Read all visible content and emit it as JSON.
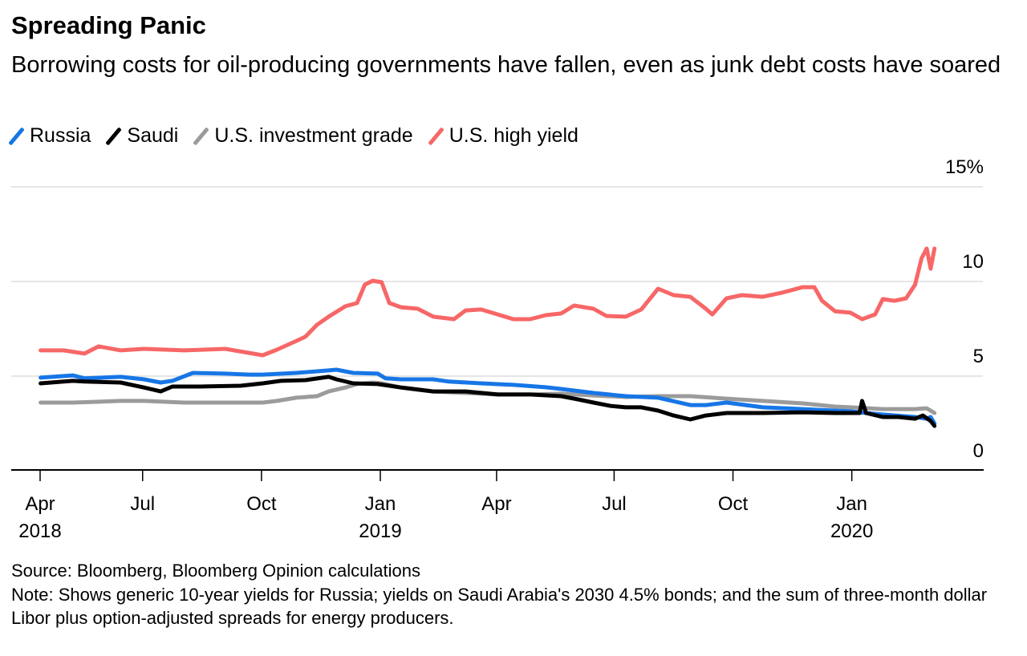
{
  "title": "Spreading Panic",
  "subtitle": "Borrowing costs for oil-producing governments have fallen, even as junk debt costs have soared",
  "source": "Source: Bloomberg, Bloomberg Opinion calculations",
  "note": "Note: Shows generic 10-year yields for Russia; yields on Saudi Arabia's 2030 4.5% bonds; and the sum of three-month dollar Libor plus option-adjusted spreads for energy producers.",
  "chart_data": {
    "type": "line",
    "title": "Spreading Panic",
    "xlabel": "",
    "ylabel": "",
    "ylim": [
      0,
      15
    ],
    "yticks": [
      {
        "value": 0,
        "label": "0"
      },
      {
        "value": 5,
        "label": "5"
      },
      {
        "value": 10,
        "label": "10"
      },
      {
        "value": 15,
        "label": "15%"
      }
    ],
    "xticks": [
      {
        "date": "2018-04-01",
        "label": "Apr",
        "year": "2018"
      },
      {
        "date": "2018-07-01",
        "label": "Jul",
        "year": ""
      },
      {
        "date": "2018-10-01",
        "label": "Oct",
        "year": ""
      },
      {
        "date": "2019-01-01",
        "label": "Jan",
        "year": "2019"
      },
      {
        "date": "2019-04-01",
        "label": "Apr",
        "year": ""
      },
      {
        "date": "2019-07-01",
        "label": "Jul",
        "year": ""
      },
      {
        "date": "2019-10-01",
        "label": "Oct",
        "year": ""
      },
      {
        "date": "2020-01-01",
        "label": "Jan",
        "year": "2020"
      }
    ],
    "grid": true,
    "legend_position": "top-left",
    "series": [
      {
        "name": "Russia",
        "color": "#1776e6",
        "points": [
          [
            "2018-04-13",
            4.92
          ],
          [
            "2018-05-08",
            5.04
          ],
          [
            "2018-05-17",
            4.88
          ],
          [
            "2018-06-14",
            4.96
          ],
          [
            "2018-07-02",
            4.83
          ],
          [
            "2018-07-15",
            4.66
          ],
          [
            "2018-07-24",
            4.75
          ],
          [
            "2018-08-09",
            5.17
          ],
          [
            "2018-09-03",
            5.13
          ],
          [
            "2018-09-21",
            5.08
          ],
          [
            "2018-10-02",
            5.08
          ],
          [
            "2018-10-28",
            5.17
          ],
          [
            "2018-11-22",
            5.3
          ],
          [
            "2018-11-28",
            5.34
          ],
          [
            "2018-12-11",
            5.17
          ],
          [
            "2018-12-30",
            5.13
          ],
          [
            "2019-01-05",
            4.88
          ],
          [
            "2019-01-17",
            4.83
          ],
          [
            "2019-02-11",
            4.83
          ],
          [
            "2019-02-23",
            4.71
          ],
          [
            "2019-03-20",
            4.62
          ],
          [
            "2019-04-14",
            4.54
          ],
          [
            "2019-05-09",
            4.41
          ],
          [
            "2019-05-21",
            4.32
          ],
          [
            "2019-06-15",
            4.11
          ],
          [
            "2019-07-10",
            3.94
          ],
          [
            "2019-08-04",
            3.86
          ],
          [
            "2019-08-29",
            3.47
          ],
          [
            "2019-09-10",
            3.47
          ],
          [
            "2019-09-26",
            3.6
          ],
          [
            "2019-10-24",
            3.35
          ],
          [
            "2019-11-24",
            3.26
          ],
          [
            "2019-12-19",
            3.18
          ],
          [
            "2019-12-31",
            3.14
          ],
          [
            "2020-01-12",
            3.05
          ],
          [
            "2020-01-25",
            2.97
          ],
          [
            "2020-02-19",
            2.84
          ],
          [
            "2020-02-28",
            2.75
          ],
          [
            "2020-03-02",
            2.84
          ],
          [
            "2020-03-05",
            2.5
          ]
        ]
      },
      {
        "name": "Saudi",
        "color": "#000000",
        "points": [
          [
            "2018-04-13",
            4.62
          ],
          [
            "2018-05-08",
            4.75
          ],
          [
            "2018-05-17",
            4.71
          ],
          [
            "2018-06-14",
            4.66
          ],
          [
            "2018-07-02",
            4.4
          ],
          [
            "2018-07-15",
            4.19
          ],
          [
            "2018-07-24",
            4.45
          ],
          [
            "2018-08-15",
            4.45
          ],
          [
            "2018-09-15",
            4.49
          ],
          [
            "2018-10-02",
            4.62
          ],
          [
            "2018-10-16",
            4.75
          ],
          [
            "2018-11-04",
            4.79
          ],
          [
            "2018-11-22",
            4.96
          ],
          [
            "2018-11-28",
            4.83
          ],
          [
            "2018-12-11",
            4.62
          ],
          [
            "2018-12-30",
            4.58
          ],
          [
            "2019-01-17",
            4.4
          ],
          [
            "2019-02-11",
            4.19
          ],
          [
            "2019-03-08",
            4.19
          ],
          [
            "2019-04-02",
            4.03
          ],
          [
            "2019-04-27",
            4.03
          ],
          [
            "2019-05-21",
            3.94
          ],
          [
            "2019-06-03",
            3.77
          ],
          [
            "2019-06-15",
            3.6
          ],
          [
            "2019-06-28",
            3.43
          ],
          [
            "2019-07-10",
            3.35
          ],
          [
            "2019-07-22",
            3.35
          ],
          [
            "2019-08-04",
            3.18
          ],
          [
            "2019-08-16",
            2.92
          ],
          [
            "2019-08-29",
            2.71
          ],
          [
            "2019-09-10",
            2.92
          ],
          [
            "2019-09-26",
            3.05
          ],
          [
            "2019-10-24",
            3.05
          ],
          [
            "2019-11-24",
            3.09
          ],
          [
            "2019-12-19",
            3.05
          ],
          [
            "2019-12-31",
            3.05
          ],
          [
            "2020-01-07",
            3.05
          ],
          [
            "2020-01-09",
            3.69
          ],
          [
            "2020-01-12",
            3.05
          ],
          [
            "2020-01-25",
            2.84
          ],
          [
            "2020-02-06",
            2.84
          ],
          [
            "2020-02-19",
            2.75
          ],
          [
            "2020-02-25",
            2.92
          ],
          [
            "2020-03-02",
            2.63
          ],
          [
            "2020-03-05",
            2.37
          ]
        ]
      },
      {
        "name": "U.S. investment grade",
        "color": "#9b9b9b",
        "points": [
          [
            "2018-04-13",
            3.6
          ],
          [
            "2018-05-08",
            3.6
          ],
          [
            "2018-06-14",
            3.69
          ],
          [
            "2018-07-02",
            3.69
          ],
          [
            "2018-08-02",
            3.6
          ],
          [
            "2018-09-03",
            3.6
          ],
          [
            "2018-10-02",
            3.6
          ],
          [
            "2018-10-13",
            3.69
          ],
          [
            "2018-10-28",
            3.86
          ],
          [
            "2018-11-13",
            3.94
          ],
          [
            "2018-11-22",
            4.19
          ],
          [
            "2018-12-05",
            4.4
          ],
          [
            "2018-12-14",
            4.58
          ],
          [
            "2018-12-26",
            4.66
          ],
          [
            "2019-01-02",
            4.62
          ],
          [
            "2019-01-17",
            4.4
          ],
          [
            "2019-02-11",
            4.19
          ],
          [
            "2019-03-08",
            4.11
          ],
          [
            "2019-04-02",
            4.03
          ],
          [
            "2019-04-27",
            4.03
          ],
          [
            "2019-05-21",
            4.07
          ],
          [
            "2019-06-15",
            3.98
          ],
          [
            "2019-07-10",
            3.9
          ],
          [
            "2019-08-04",
            3.94
          ],
          [
            "2019-08-29",
            3.94
          ],
          [
            "2019-09-26",
            3.81
          ],
          [
            "2019-10-24",
            3.69
          ],
          [
            "2019-11-24",
            3.56
          ],
          [
            "2019-12-19",
            3.39
          ],
          [
            "2019-12-31",
            3.35
          ],
          [
            "2020-01-25",
            3.26
          ],
          [
            "2020-02-19",
            3.26
          ],
          [
            "2020-02-28",
            3.3
          ],
          [
            "2020-03-05",
            3.05
          ]
        ]
      },
      {
        "name": "U.S. high yield",
        "color": "#f76767",
        "points": [
          [
            "2018-04-13",
            6.36
          ],
          [
            "2018-05-01",
            6.36
          ],
          [
            "2018-05-17",
            6.19
          ],
          [
            "2018-05-28",
            6.57
          ],
          [
            "2018-06-14",
            6.36
          ],
          [
            "2018-07-02",
            6.44
          ],
          [
            "2018-08-02",
            6.36
          ],
          [
            "2018-09-03",
            6.44
          ],
          [
            "2018-09-21",
            6.23
          ],
          [
            "2018-10-02",
            6.1
          ],
          [
            "2018-10-13",
            6.4
          ],
          [
            "2018-10-28",
            6.86
          ],
          [
            "2018-11-04",
            7.08
          ],
          [
            "2018-11-13",
            7.71
          ],
          [
            "2018-11-22",
            8.14
          ],
          [
            "2018-12-05",
            8.69
          ],
          [
            "2018-12-14",
            8.86
          ],
          [
            "2018-12-20",
            9.83
          ],
          [
            "2018-12-26",
            10.04
          ],
          [
            "2019-01-02",
            9.96
          ],
          [
            "2019-01-08",
            8.86
          ],
          [
            "2019-01-17",
            8.64
          ],
          [
            "2019-01-30",
            8.56
          ],
          [
            "2019-02-11",
            8.14
          ],
          [
            "2019-02-27",
            8.01
          ],
          [
            "2019-03-08",
            8.47
          ],
          [
            "2019-03-20",
            8.52
          ],
          [
            "2019-04-02",
            8.26
          ],
          [
            "2019-04-14",
            8.01
          ],
          [
            "2019-04-27",
            8.01
          ],
          [
            "2019-05-09",
            8.22
          ],
          [
            "2019-05-21",
            8.31
          ],
          [
            "2019-05-31",
            8.73
          ],
          [
            "2019-06-15",
            8.56
          ],
          [
            "2019-06-25",
            8.18
          ],
          [
            "2019-07-10",
            8.14
          ],
          [
            "2019-07-22",
            8.52
          ],
          [
            "2019-08-04",
            9.62
          ],
          [
            "2019-08-16",
            9.28
          ],
          [
            "2019-08-29",
            9.19
          ],
          [
            "2019-09-10",
            8.56
          ],
          [
            "2019-09-15",
            8.26
          ],
          [
            "2019-09-26",
            9.11
          ],
          [
            "2019-10-08",
            9.28
          ],
          [
            "2019-10-24",
            9.19
          ],
          [
            "2019-11-08",
            9.41
          ],
          [
            "2019-11-24",
            9.7
          ],
          [
            "2019-12-03",
            9.7
          ],
          [
            "2019-12-09",
            8.98
          ],
          [
            "2019-12-19",
            8.43
          ],
          [
            "2019-12-31",
            8.35
          ],
          [
            "2020-01-09",
            8.01
          ],
          [
            "2020-01-19",
            8.26
          ],
          [
            "2020-01-25",
            9.07
          ],
          [
            "2020-02-03",
            8.98
          ],
          [
            "2020-02-12",
            9.11
          ],
          [
            "2020-02-19",
            9.83
          ],
          [
            "2020-02-24",
            11.23
          ],
          [
            "2020-02-28",
            11.74
          ],
          [
            "2020-03-02",
            10.68
          ],
          [
            "2020-03-05",
            11.74
          ]
        ]
      }
    ]
  }
}
